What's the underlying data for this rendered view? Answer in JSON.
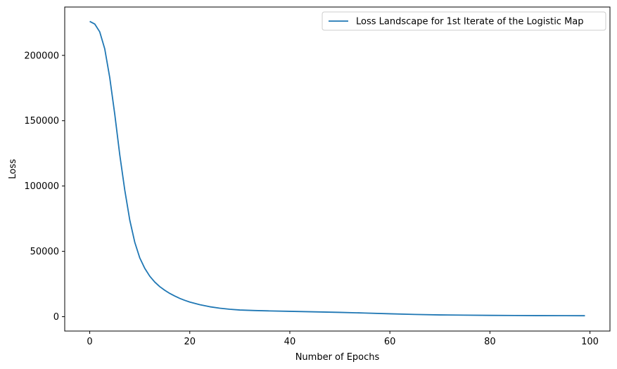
{
  "chart_data": {
    "type": "line",
    "title": "",
    "xlabel": "Number of Epochs",
    "ylabel": "Loss",
    "xlim": [
      -5,
      104
    ],
    "ylim": [
      -11000,
      237000
    ],
    "xticks": [
      0,
      20,
      40,
      60,
      80,
      100
    ],
    "xtick_labels": [
      "0",
      "20",
      "40",
      "60",
      "80",
      "100"
    ],
    "yticks": [
      0,
      50000,
      100000,
      150000,
      200000
    ],
    "ytick_labels": [
      "0",
      "50000",
      "100000",
      "150000",
      "200000"
    ],
    "grid": false,
    "legend_position": "top-right",
    "series": [
      {
        "name": "Loss Landscape for 1st Iterate of the Logistic Map",
        "color": "#1f77b4",
        "x": [
          0,
          1,
          2,
          3,
          4,
          5,
          6,
          7,
          8,
          9,
          10,
          11,
          12,
          13,
          14,
          15,
          16,
          17,
          18,
          19,
          20,
          22,
          24,
          26,
          28,
          30,
          33,
          36,
          40,
          45,
          50,
          55,
          60,
          65,
          70,
          75,
          80,
          85,
          90,
          95,
          99
        ],
        "y": [
          226000,
          224000,
          218000,
          205000,
          183000,
          155000,
          124000,
          97000,
          74000,
          57000,
          45000,
          37000,
          31000,
          26500,
          23000,
          20200,
          17800,
          15800,
          14000,
          12500,
          11200,
          9200,
          7600,
          6500,
          5700,
          5100,
          4700,
          4400,
          4100,
          3700,
          3300,
          2800,
          2200,
          1700,
          1350,
          1150,
          1000,
          900,
          800,
          760,
          720
        ]
      }
    ]
  }
}
